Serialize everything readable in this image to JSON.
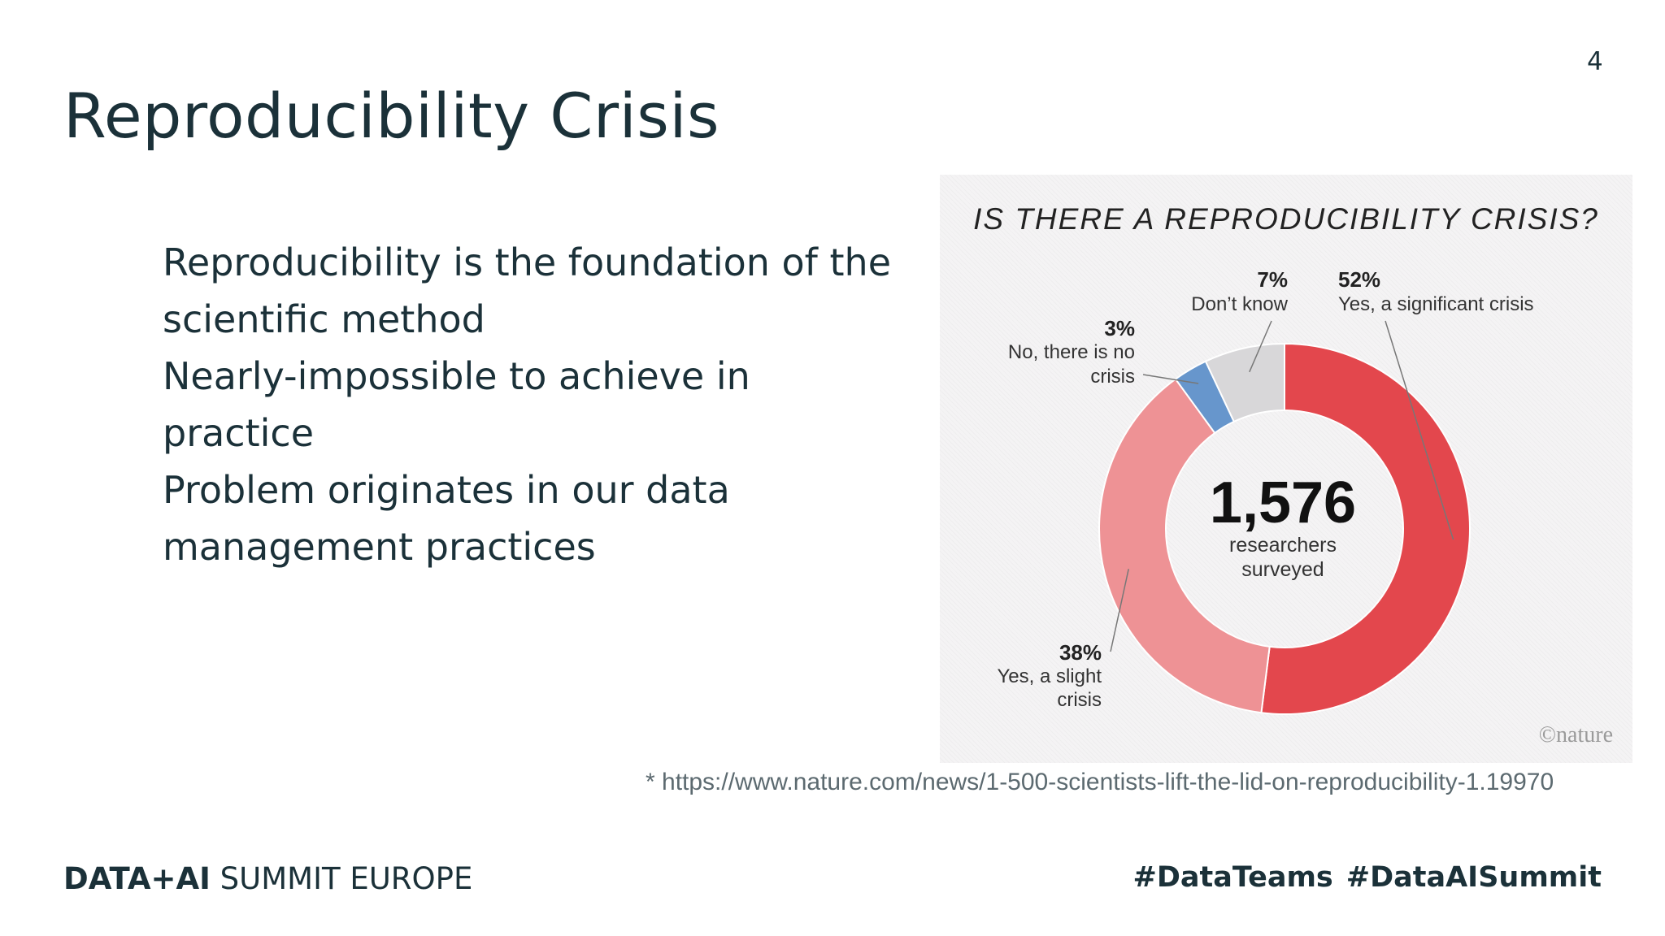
{
  "slide": {
    "page_number": "4",
    "title": "Reproducibility Crisis",
    "bullets": [
      "Reproducibility is the foundation of the",
      "scientific method",
      "Nearly-impossible to achieve in practice",
      "Problem originates in our data",
      "management practices"
    ],
    "citation": "* https://www.nature.com/news/1-500-scientists-lift-the-lid-on-reproducibility-1.19970"
  },
  "footer": {
    "brand_bold": "DATA+AI",
    "brand_rest": " SUMMIT EUROPE",
    "hashtags": [
      "#DataTeams",
      "#DataAISummit"
    ]
  },
  "chart_data": {
    "type": "pie",
    "variant": "donut",
    "title": "IS THERE A REPRODUCIBILITY CRISIS?",
    "center_value": "1,576",
    "center_lines": [
      "researchers",
      "surveyed"
    ],
    "slices": [
      {
        "percent_label": "52%",
        "label_lines": [
          "Yes, a significant crisis"
        ],
        "value": 52,
        "color": "#e3474d"
      },
      {
        "percent_label": "38%",
        "label_lines": [
          "Yes, a slight",
          "crisis"
        ],
        "value": 38,
        "color": "#ee9295"
      },
      {
        "percent_label": "3%",
        "label_lines": [
          "No, there is no",
          "crisis"
        ],
        "value": 3,
        "color": "#6796cc"
      },
      {
        "percent_label": "7%",
        "label_lines": [
          "Don’t know"
        ],
        "value": 7,
        "color": "#d8d7d9"
      }
    ],
    "credit": "©nature"
  }
}
